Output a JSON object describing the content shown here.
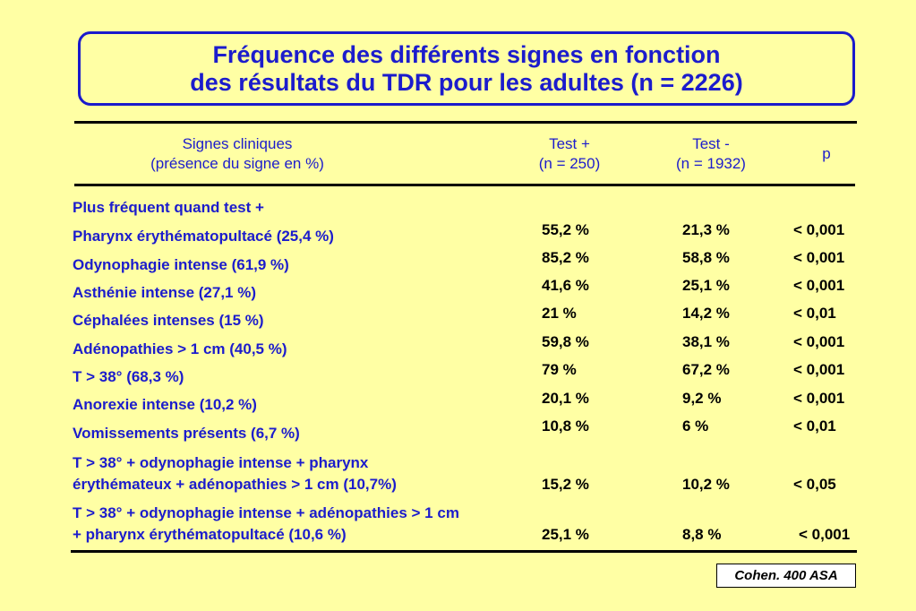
{
  "title": {
    "line1": "Fréquence des différents signes en fonction",
    "line2": "des résultats du TDR pour les adultes (n = 2226)"
  },
  "headers": {
    "signs_line1": "Signes cliniques",
    "signs_line2": "(présence du signe en %)",
    "testpos_line1": "Test +",
    "testpos_line2": "(n = 250)",
    "testneg_line1": "Test -",
    "testneg_line2": "(n = 1932)",
    "p": "p"
  },
  "section_label": "Plus fréquent quand test +",
  "rows": [
    {
      "sign": "Pharynx érythématopultacé (25,4 %)",
      "pos": "55,2 %",
      "neg": "21,3 %",
      "p": "< 0,001"
    },
    {
      "sign": "Odynophagie intense (61,9 %)",
      "pos": "85,2 %",
      "neg": "58,8 %",
      "p": "< 0,001"
    },
    {
      "sign": "Asthénie intense (27,1 %)",
      "pos": "41,6 %",
      "neg": "25,1 %",
      "p": "< 0,001"
    },
    {
      "sign": "Céphalées intenses (15 %)",
      "pos": "21 %",
      "neg": "14,2 %",
      "p": "< 0,01"
    },
    {
      "sign": "Adénopathies > 1 cm (40,5 %)",
      "pos": "59,8 %",
      "neg": "38,1 %",
      "p": "< 0,001"
    },
    {
      "sign": "T > 38° (68,3 %)",
      "pos": "79 %",
      "neg": "67,2 %",
      "p": "< 0,001"
    },
    {
      "sign": "Anorexie intense (10,2 %)",
      "pos": "20,1 %",
      "neg": "9,2 %",
      "p": "< 0,001"
    },
    {
      "sign": "Vomissements présents (6,7 %)",
      "pos": "10,8 %",
      "neg": "6 %",
      "p": "< 0,01"
    }
  ],
  "combo_rows": [
    {
      "sign_line1": "T > 38° + odynophagie intense + pharynx",
      "sign_line2": "érythémateux + adénopathies > 1 cm (10,7%)",
      "pos": "15,2 %",
      "neg": "10,2 %",
      "p": "< 0,05"
    },
    {
      "sign_line1": "T > 38° + odynophagie intense + adénopathies > 1 cm",
      "sign_line2": "+ pharynx érythématopultacé (10,6 %)",
      "pos": "25,1 %",
      "neg": "8,8 %",
      "p": "< 0,001"
    }
  ],
  "reference": "Cohen. 400 ASA"
}
